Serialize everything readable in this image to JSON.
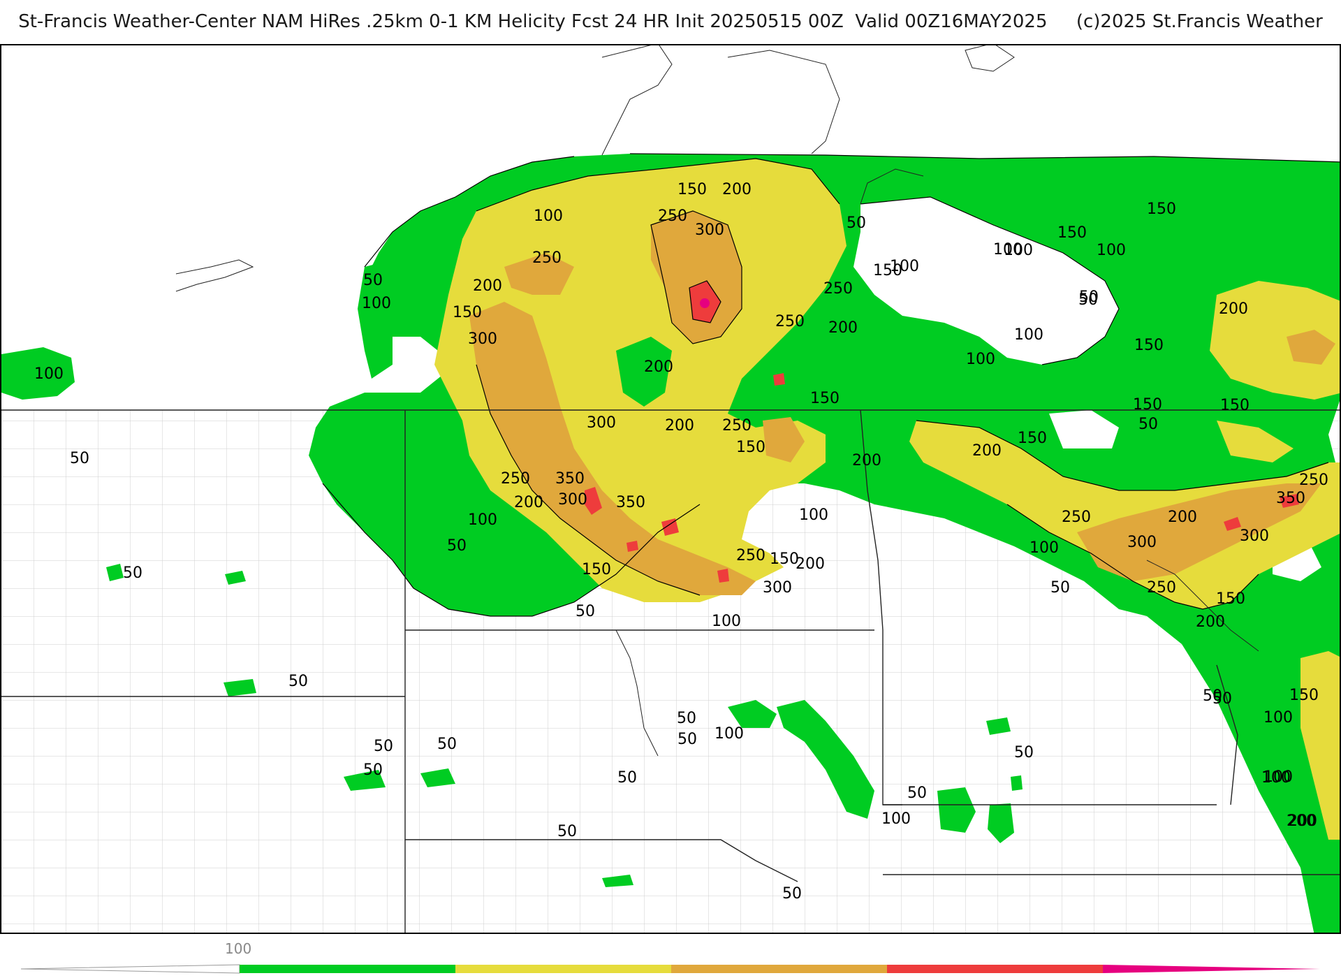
{
  "header": {
    "title": "St-Francis Weather-Center NAM HiRes .25km 0-1 KM Helicity Fcst 24 HR Init 20250515 00Z  Valid 00Z16MAY2025     (c)2025 St.Francis Weather"
  },
  "colors": {
    "level_100": "#00cc22",
    "level_200": "#e6dc3c",
    "level_300": "#e0a83c",
    "level_400": "#ee3c3c",
    "level_500": "#e6007f",
    "state_lines": "#000000",
    "county_lines": "#c8c8c8",
    "contours": "#000000"
  },
  "legend": {
    "label_100": "100"
  },
  "contour_labels": [
    {
      "text": "150"
    },
    {
      "text": "200"
    },
    {
      "text": "100"
    },
    {
      "text": "250"
    },
    {
      "text": "300"
    },
    {
      "text": "50"
    },
    {
      "text": "100"
    },
    {
      "text": "250"
    },
    {
      "text": "150"
    },
    {
      "text": "100"
    },
    {
      "text": "200"
    },
    {
      "text": "150"
    },
    {
      "text": "300"
    },
    {
      "text": "250"
    },
    {
      "text": "200"
    },
    {
      "text": "250"
    },
    {
      "text": "200"
    },
    {
      "text": "300"
    },
    {
      "text": "150"
    },
    {
      "text": "200"
    },
    {
      "text": "250"
    },
    {
      "text": "150"
    },
    {
      "text": "200"
    },
    {
      "text": "250"
    },
    {
      "text": "350"
    },
    {
      "text": "300"
    },
    {
      "text": "350"
    },
    {
      "text": "200"
    },
    {
      "text": "100"
    },
    {
      "text": "50"
    },
    {
      "text": "250"
    },
    {
      "text": "150"
    },
    {
      "text": "200"
    },
    {
      "text": "300"
    },
    {
      "text": "150"
    },
    {
      "text": "50"
    },
    {
      "text": "100"
    },
    {
      "text": "100"
    },
    {
      "text": "100"
    },
    {
      "text": "50"
    },
    {
      "text": "150"
    },
    {
      "text": "150"
    },
    {
      "text": "100"
    },
    {
      "text": "50"
    },
    {
      "text": "100"
    },
    {
      "text": "150"
    },
    {
      "text": "200"
    },
    {
      "text": "100"
    },
    {
      "text": "200"
    },
    {
      "text": "150"
    },
    {
      "text": "50"
    },
    {
      "text": "150"
    },
    {
      "text": "250"
    },
    {
      "text": "300"
    },
    {
      "text": "200"
    },
    {
      "text": "350"
    },
    {
      "text": "250"
    },
    {
      "text": "300"
    },
    {
      "text": "100"
    },
    {
      "text": "50"
    },
    {
      "text": "250"
    },
    {
      "text": "200"
    },
    {
      "text": "150"
    },
    {
      "text": "150"
    },
    {
      "text": "50"
    },
    {
      "text": "150"
    },
    {
      "text": "100"
    },
    {
      "text": "200"
    },
    {
      "text": "50"
    },
    {
      "text": "100"
    },
    {
      "text": "50"
    },
    {
      "text": "50"
    },
    {
      "text": "50"
    },
    {
      "text": "50"
    },
    {
      "text": "50"
    },
    {
      "text": "100"
    },
    {
      "text": "50"
    },
    {
      "text": "50"
    },
    {
      "text": "100"
    },
    {
      "text": "50"
    },
    {
      "text": "50"
    },
    {
      "text": "50"
    },
    {
      "text": "100"
    },
    {
      "text": "50"
    },
    {
      "text": "50"
    },
    {
      "text": "100"
    },
    {
      "text": "50"
    },
    {
      "text": "50"
    },
    {
      "text": "100"
    },
    {
      "text": "200"
    }
  ]
}
